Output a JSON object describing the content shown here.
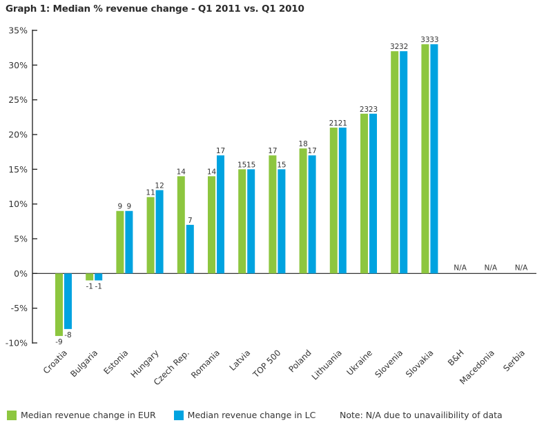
{
  "colors": {
    "eur": "#8dc63f",
    "lc": "#00a3e0",
    "axis": "#1a1a1a",
    "text": "#333333"
  },
  "chart_data": {
    "type": "bar",
    "title": "Graph 1: Median % revenue change - Q1 2011 vs. Q1 2010",
    "xlabel": "",
    "ylabel": "",
    "ylim": [
      -10,
      35
    ],
    "yticks": [
      35,
      30,
      25,
      20,
      15,
      10,
      5,
      0,
      -5,
      -10
    ],
    "ytick_labels": [
      "35%",
      "30%",
      "25%",
      "20%",
      "15%",
      "10%",
      "5%",
      "0%",
      "-5%",
      "-10%"
    ],
    "grid": false,
    "legend_position": "bottom-left",
    "categories": [
      "Croatia",
      "Bulgaria",
      "Estonia",
      "Hungary",
      "Czech Rep.",
      "Romania",
      "Latvia",
      "TOP 500",
      "Poland",
      "Lithuania",
      "Ukraine",
      "Slovenia",
      "Slovakia",
      "B&H",
      "Macedonia",
      "Serbia"
    ],
    "series": [
      {
        "name": "Median revenue change in EUR",
        "color_key": "eur",
        "values": [
          -9,
          -1,
          9,
          11,
          14,
          14,
          15,
          17,
          18,
          21,
          23,
          32,
          33,
          null,
          null,
          null
        ]
      },
      {
        "name": "Median revenue change in LC",
        "color_key": "lc",
        "values": [
          -8,
          -1,
          9,
          12,
          7,
          17,
          15,
          15,
          17,
          21,
          23,
          32,
          33,
          null,
          null,
          null
        ]
      }
    ],
    "missing_label": "N/A",
    "annotations": [
      "Note: N/A due to unavailibility of data"
    ]
  },
  "legend": {
    "eur_label": "Median revenue change in EUR",
    "lc_label": "Median revenue change in LC"
  },
  "note": "Note: N/A due to unavailibility of data"
}
